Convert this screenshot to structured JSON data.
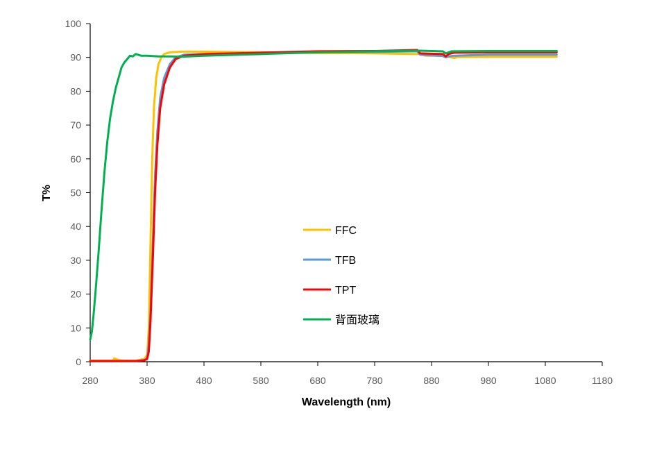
{
  "chart_data": {
    "type": "line",
    "title": "",
    "xlabel": "Wavelength (nm)",
    "ylabel": "T%",
    "xlim": [
      280,
      1180
    ],
    "ylim": [
      0,
      100
    ],
    "x_ticks": [
      280,
      380,
      480,
      580,
      680,
      780,
      880,
      980,
      1080,
      1180
    ],
    "y_ticks": [
      0,
      10,
      20,
      30,
      40,
      50,
      60,
      70,
      80,
      90,
      100
    ],
    "x_tick_labels": [
      "280",
      "380",
      "480",
      "580",
      "680",
      "780",
      "880",
      "980",
      "1080",
      "1180"
    ],
    "y_tick_labels": [
      "0",
      "10",
      "20",
      "30",
      "40",
      "50",
      "60",
      "70",
      "80",
      "90",
      "100"
    ],
    "grid": false,
    "legend_position": "center",
    "series": [
      {
        "name": "FFC",
        "color": "#FFC000",
        "points": [
          [
            280,
            0.3
          ],
          [
            320,
            0.3
          ],
          [
            322,
            1.0
          ],
          [
            330,
            0.5
          ],
          [
            340,
            0.3
          ],
          [
            360,
            0.3
          ],
          [
            375,
            0.8
          ],
          [
            380,
            2
          ],
          [
            383,
            10
          ],
          [
            386,
            35
          ],
          [
            389,
            60
          ],
          [
            392,
            75
          ],
          [
            396,
            84
          ],
          [
            400,
            88
          ],
          [
            405,
            90
          ],
          [
            410,
            91
          ],
          [
            420,
            91.5
          ],
          [
            440,
            91.7
          ],
          [
            480,
            91.7
          ],
          [
            580,
            91.5
          ],
          [
            680,
            91.3
          ],
          [
            780,
            91.2
          ],
          [
            860,
            91.0
          ],
          [
            870,
            90.5
          ],
          [
            900,
            90.5
          ],
          [
            915,
            90.0
          ],
          [
            920,
            89.8
          ],
          [
            925,
            90.1
          ],
          [
            980,
            90.2
          ],
          [
            1100,
            90.2
          ]
        ]
      },
      {
        "name": "TFB",
        "color": "#5B9BD5",
        "points": [
          [
            280,
            0.2
          ],
          [
            360,
            0.2
          ],
          [
            375,
            0.5
          ],
          [
            380,
            1
          ],
          [
            383,
            5
          ],
          [
            386,
            15
          ],
          [
            390,
            35
          ],
          [
            394,
            55
          ],
          [
            398,
            68
          ],
          [
            403,
            78
          ],
          [
            410,
            84
          ],
          [
            420,
            88
          ],
          [
            430,
            90
          ],
          [
            445,
            90.8
          ],
          [
            480,
            91
          ],
          [
            580,
            91.3
          ],
          [
            680,
            91.6
          ],
          [
            780,
            91.6
          ],
          [
            855,
            91.8
          ],
          [
            860,
            90.8
          ],
          [
            900,
            90.4
          ],
          [
            905,
            90.0
          ],
          [
            910,
            90.3
          ],
          [
            920,
            90.5
          ],
          [
            980,
            90.8
          ],
          [
            1100,
            90.8
          ]
        ]
      },
      {
        "name": "TPT",
        "color": "#FF0000",
        "points": [
          [
            280,
            0.2
          ],
          [
            360,
            0.2
          ],
          [
            375,
            0.4
          ],
          [
            380,
            0.8
          ],
          [
            383,
            3
          ],
          [
            386,
            12
          ],
          [
            390,
            30
          ],
          [
            394,
            50
          ],
          [
            398,
            64
          ],
          [
            403,
            75
          ],
          [
            410,
            82
          ],
          [
            420,
            87
          ],
          [
            430,
            89.5
          ],
          [
            445,
            90.5
          ],
          [
            480,
            91
          ],
          [
            580,
            91.4
          ],
          [
            680,
            91.8
          ],
          [
            780,
            91.9
          ],
          [
            855,
            92.2
          ],
          [
            860,
            91.2
          ],
          [
            900,
            91.0
          ],
          [
            905,
            90.3
          ],
          [
            910,
            91.0
          ],
          [
            920,
            91.4
          ],
          [
            980,
            91.5
          ],
          [
            1100,
            91.5
          ]
        ]
      },
      {
        "name": "背面玻璃",
        "color": "#00B050",
        "points": [
          [
            280,
            6.5
          ],
          [
            283,
            9
          ],
          [
            286,
            14
          ],
          [
            290,
            22
          ],
          [
            295,
            33
          ],
          [
            300,
            45
          ],
          [
            305,
            56
          ],
          [
            310,
            65
          ],
          [
            315,
            72
          ],
          [
            320,
            77
          ],
          [
            325,
            81
          ],
          [
            330,
            84
          ],
          [
            335,
            87
          ],
          [
            340,
            88.5
          ],
          [
            345,
            89.5
          ],
          [
            350,
            90.5
          ],
          [
            355,
            90.3
          ],
          [
            360,
            91
          ],
          [
            370,
            90.5
          ],
          [
            380,
            90.5
          ],
          [
            400,
            90.3
          ],
          [
            420,
            90.3
          ],
          [
            440,
            90.2
          ],
          [
            480,
            90.5
          ],
          [
            580,
            91
          ],
          [
            680,
            91.5
          ],
          [
            780,
            91.8
          ],
          [
            860,
            92
          ],
          [
            900,
            91.8
          ],
          [
            905,
            91.2
          ],
          [
            915,
            91.8
          ],
          [
            980,
            91.9
          ],
          [
            1100,
            91.9
          ]
        ]
      }
    ]
  }
}
